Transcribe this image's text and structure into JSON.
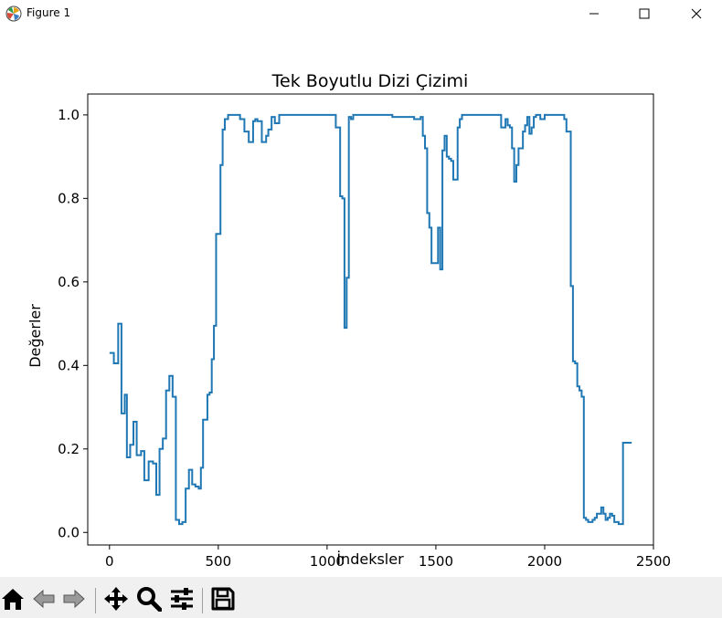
{
  "window": {
    "title": "Figure 1",
    "icons": [
      "matplotlib-logo-icon",
      "minimize-icon",
      "maximize-icon",
      "close-icon"
    ]
  },
  "toolbar": {
    "buttons": [
      "home-icon",
      "back-icon",
      "forward-icon",
      "pan-icon",
      "zoom-icon",
      "configure-subplots-icon",
      "save-icon"
    ]
  },
  "colors": {
    "line": "#1f77b4",
    "toolbar_bg": "#f0f0f0",
    "axes_frame": "#000000"
  },
  "chart_data": {
    "type": "line",
    "title": "Tek Boyutlu Dizi Çizimi",
    "xlabel": "İndeksler",
    "ylabel": "Değerler",
    "xlim": [
      -100,
      2500
    ],
    "ylim": [
      -0.03,
      1.05
    ],
    "xticks": [
      0,
      500,
      1000,
      1500,
      2000,
      2500
    ],
    "xtick_labels": [
      "0",
      "500",
      "1000",
      "1500",
      "2000",
      "2500"
    ],
    "yticks": [
      0.0,
      0.2,
      0.4,
      0.6,
      0.8,
      1.0
    ],
    "ytick_labels": [
      "0.0",
      "0.2",
      "0.4",
      "0.6",
      "0.8",
      "1.0"
    ],
    "grid": false,
    "legend": "none",
    "series": [
      {
        "step": "pre",
        "x": [
          0,
          20,
          40,
          55,
          70,
          80,
          95,
          110,
          125,
          145,
          160,
          180,
          200,
          215,
          230,
          245,
          260,
          275,
          290,
          305,
          320,
          335,
          350,
          365,
          380,
          395,
          410,
          420,
          430,
          450,
          460,
          470,
          480,
          490,
          500,
          510,
          520,
          530,
          545,
          560,
          580,
          600,
          620,
          640,
          660,
          670,
          680,
          700,
          720,
          730,
          745,
          760,
          780,
          795,
          810,
          850,
          900,
          950,
          1000,
          1020,
          1040,
          1060,
          1070,
          1080,
          1090,
          1100,
          1110,
          1120,
          1140,
          1200,
          1300,
          1400,
          1430,
          1440,
          1450,
          1460,
          1470,
          1480,
          1500,
          1510,
          1520,
          1530,
          1540,
          1550,
          1560,
          1570,
          1580,
          1600,
          1610,
          1620,
          1630,
          1650,
          1670,
          1700,
          1750,
          1800,
          1810,
          1820,
          1830,
          1840,
          1850,
          1860,
          1870,
          1880,
          1900,
          1910,
          1920,
          1930,
          1940,
          1950,
          1960,
          1980,
          2000,
          2050,
          2090,
          2100,
          2120,
          2130,
          2140,
          2150,
          2160,
          2170,
          2180,
          2190,
          2200,
          2210,
          2220,
          2230,
          2240,
          2250,
          2260,
          2270,
          2280,
          2290,
          2300,
          2310,
          2320,
          2340,
          2360,
          2380,
          2400
        ],
        "y": [
          0.43,
          0.43,
          0.405,
          0.5,
          0.285,
          0.33,
          0.18,
          0.21,
          0.265,
          0.185,
          0.195,
          0.125,
          0.17,
          0.165,
          0.09,
          0.2,
          0.225,
          0.34,
          0.375,
          0.325,
          0.03,
          0.02,
          0.025,
          0.105,
          0.15,
          0.115,
          0.11,
          0.105,
          0.155,
          0.27,
          0.33,
          0.335,
          0.415,
          0.495,
          0.715,
          0.715,
          0.88,
          0.965,
          0.99,
          1.0,
          1.0,
          1.0,
          0.99,
          0.96,
          0.935,
          0.985,
          0.99,
          0.985,
          0.935,
          0.95,
          0.965,
          0.995,
          0.98,
          1.0,
          1.0,
          1.0,
          1.0,
          1.0,
          1.0,
          1.0,
          1.0,
          0.97,
          0.805,
          0.8,
          0.49,
          0.61,
          0.995,
          0.99,
          1.0,
          1.0,
          1.0,
          0.995,
          0.99,
          0.995,
          0.95,
          0.92,
          0.765,
          0.73,
          0.645,
          0.645,
          0.73,
          0.63,
          0.915,
          0.95,
          0.9,
          0.895,
          0.89,
          0.845,
          0.97,
          0.99,
          1.0,
          1.0,
          1.0,
          1.0,
          1.0,
          1.0,
          0.97,
          0.97,
          0.99,
          0.975,
          0.97,
          0.92,
          0.84,
          0.88,
          0.92,
          0.96,
          0.975,
          0.995,
          0.955,
          0.97,
          0.995,
          1.0,
          0.99,
          1.0,
          1.0,
          0.99,
          0.96,
          0.59,
          0.41,
          0.405,
          0.35,
          0.34,
          0.325,
          0.035,
          0.03,
          0.025,
          0.025,
          0.03,
          0.035,
          0.045,
          0.045,
          0.06,
          0.045,
          0.03,
          0.035,
          0.045,
          0.04,
          0.025,
          0.02,
          0.215,
          0.215
        ]
      }
    ]
  }
}
